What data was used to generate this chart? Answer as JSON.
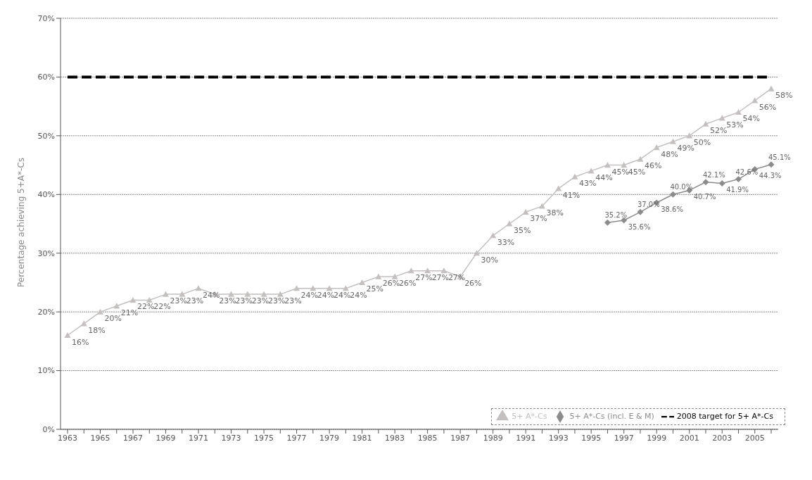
{
  "chart_data": {
    "type": "line",
    "ylabel": "Percentage achieving 5+A*-Cs",
    "categories": [
      "1963",
      null,
      "1965",
      null,
      "1967",
      null,
      "1969",
      null,
      "1971",
      null,
      "1973",
      null,
      "1975",
      null,
      "1977",
      null,
      "1979",
      null,
      "1981",
      null,
      "1983",
      null,
      "1985",
      null,
      "1987",
      null,
      "1989",
      null,
      "1991",
      null,
      "1993",
      null,
      "1995",
      null,
      "1997",
      null,
      "1999",
      null,
      "2001",
      null,
      "2003",
      null,
      "2005",
      null
    ],
    "series": [
      {
        "name": "5+ A*-Cs",
        "color": "#c4c0c0",
        "marker": "triangle",
        "line_style": "solid",
        "values": [
          16,
          18,
          20,
          21,
          22,
          22,
          23,
          23,
          24,
          23,
          23,
          23,
          23,
          23,
          24,
          24,
          24,
          24,
          25,
          26,
          26,
          27,
          27,
          27,
          26,
          30,
          33,
          35,
          37,
          38,
          41,
          43,
          44,
          45,
          45,
          46,
          48,
          49,
          50,
          52,
          53,
          54,
          56,
          58
        ],
        "value_labels": [
          "16%",
          "18%",
          "20%",
          "21%",
          "22%",
          "22%",
          "23%",
          "23%",
          "24%",
          "23%",
          "23%",
          "23%",
          "23%",
          "23%",
          "24%",
          "24%",
          "24%",
          "24%",
          "25%",
          "26%",
          "26%",
          "27%",
          "27%",
          "27%",
          "26%",
          "30%",
          "33%",
          "35%",
          "37%",
          "38%",
          "41%",
          "43%",
          "44%",
          "45%",
          "45%",
          "46%",
          "48%",
          "49%",
          "50%",
          "52%",
          "53%",
          "54%",
          "56%",
          "58%"
        ]
      },
      {
        "name": "5+ A*-Cs (incl. E & M)",
        "color": "#8c8c8c",
        "marker": "diamond",
        "line_style": "solid",
        "values": [
          null,
          null,
          null,
          null,
          null,
          null,
          null,
          null,
          null,
          null,
          null,
          null,
          null,
          null,
          null,
          null,
          null,
          null,
          null,
          null,
          null,
          null,
          null,
          null,
          null,
          null,
          null,
          null,
          null,
          null,
          null,
          null,
          null,
          35.2,
          35.6,
          37.0,
          38.6,
          40.0,
          40.7,
          42.1,
          41.9,
          42.6,
          44.3,
          45.1
        ],
        "value_labels": [
          null,
          null,
          null,
          null,
          null,
          null,
          null,
          null,
          null,
          null,
          null,
          null,
          null,
          null,
          null,
          null,
          null,
          null,
          null,
          null,
          null,
          null,
          null,
          null,
          null,
          null,
          null,
          null,
          null,
          null,
          null,
          null,
          null,
          "35.2%",
          "35.6%",
          "37.0%",
          "38.6%",
          "40.0%",
          "40.7%",
          "42.1%",
          "41.9%",
          "42.6%",
          "44.3%",
          "45.1%"
        ]
      },
      {
        "name": "2008 target for 5+ A*-Cs",
        "color": "#000000",
        "marker": "none",
        "line_style": "dashed",
        "values": [
          60,
          60,
          60,
          60,
          60,
          60,
          60,
          60,
          60,
          60,
          60,
          60,
          60,
          60,
          60,
          60,
          60,
          60,
          60,
          60,
          60,
          60,
          60,
          60,
          60,
          60,
          60,
          60,
          60,
          60,
          60,
          60,
          60,
          60,
          60,
          60,
          60,
          60,
          60,
          60,
          60,
          60,
          60,
          60
        ]
      }
    ],
    "ylim": [
      0,
      70
    ],
    "yticks": [
      {
        "value": 0,
        "label": "0%"
      },
      {
        "value": 10,
        "label": "10%"
      },
      {
        "value": 20,
        "label": "20%"
      },
      {
        "value": 30,
        "label": "30%"
      },
      {
        "value": 40,
        "label": "40%"
      },
      {
        "value": 50,
        "label": "50%"
      },
      {
        "value": 60,
        "label": "60%"
      },
      {
        "value": 70,
        "label": "70%"
      }
    ],
    "grid": "y",
    "legend": "bottom right"
  }
}
